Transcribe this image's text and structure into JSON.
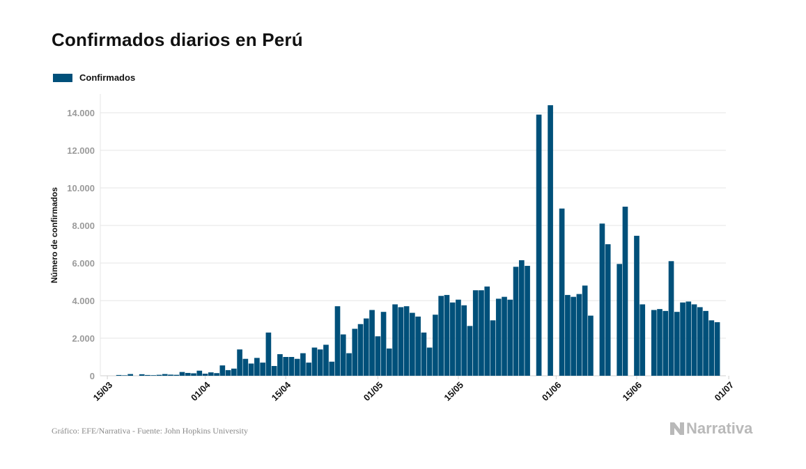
{
  "title": "Confirmados diarios en Perú",
  "source": "Gráfico: EFE/Narrativa - Fuente: John Hopkins University",
  "brand": "Narrativa",
  "colors": {
    "bar": "#00507A",
    "grid": "#e6e6e6",
    "axis": "#cfcfcf"
  },
  "chart_data": {
    "type": "bar",
    "title": "Confirmados diarios en Perú",
    "ylabel": "Número de confirmados",
    "xlabel": "",
    "ylim": [
      0,
      15000
    ],
    "yticks": [
      0,
      2000,
      4000,
      6000,
      8000,
      10000,
      12000,
      14000
    ],
    "ytick_labels": [
      "0",
      "2.000",
      "4.000",
      "6.000",
      "8.000",
      "10.000",
      "12.000",
      "14.000"
    ],
    "xtick_labels": [
      "15/03",
      "01/04",
      "15/04",
      "01/05",
      "15/05",
      "01/06",
      "15/06",
      "01/07"
    ],
    "xtick_index": [
      0,
      17,
      31,
      47,
      61,
      78,
      92,
      108
    ],
    "legend": {
      "position": "top-left",
      "entries": [
        "Confirmados"
      ]
    },
    "grid": true,
    "series": [
      {
        "name": "Confirmados",
        "start_date": "15/03",
        "values": [
          0,
          0,
          40,
          25,
          90,
          0,
          80,
          40,
          30,
          50,
          90,
          60,
          50,
          200,
          150,
          130,
          270,
          110,
          180,
          140,
          550,
          300,
          380,
          1400,
          900,
          650,
          950,
          700,
          2300,
          520,
          1150,
          1000,
          1000,
          900,
          1200,
          700,
          1500,
          1400,
          1650,
          750,
          3700,
          2200,
          1200,
          2500,
          2750,
          3050,
          3500,
          2100,
          3400,
          1450,
          3800,
          3650,
          3700,
          3350,
          3150,
          2300,
          1500,
          3250,
          4250,
          4300,
          3900,
          4050,
          3750,
          2650,
          4550,
          4550,
          4750,
          2950,
          4100,
          4200,
          4050,
          5800,
          6150,
          5850,
          0,
          13900,
          0,
          14400,
          0,
          8900,
          4300,
          4200,
          4350,
          4800,
          3200,
          0,
          8100,
          7000,
          0,
          5950,
          9000,
          0,
          7450,
          3800,
          0,
          3500,
          3550,
          3450,
          6100,
          3400,
          3900,
          3950,
          3800,
          3650,
          3450,
          2950,
          2850,
          0
        ]
      }
    ]
  }
}
